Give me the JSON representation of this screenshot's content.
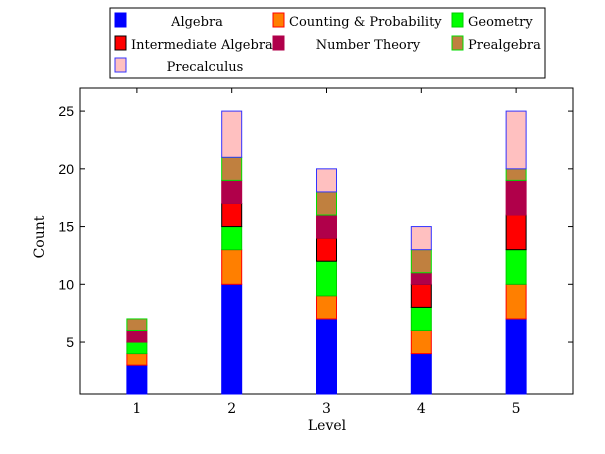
{
  "chart_data": {
    "type": "bar",
    "stacked": true,
    "categories": [
      "1",
      "2",
      "3",
      "4",
      "5"
    ],
    "xlabel": "Level",
    "ylabel": "Count",
    "ylim": [
      0.5,
      27
    ],
    "yticks": [
      5,
      10,
      15,
      20,
      25
    ],
    "grid": false,
    "legend_position": "top",
    "series": [
      {
        "name": "Algebra",
        "values": [
          3,
          10,
          7,
          4,
          7
        ],
        "fill": "#0000ff",
        "stroke": "#0000ff"
      },
      {
        "name": "Counting & Probability",
        "values": [
          1,
          3,
          2,
          2,
          3
        ],
        "fill": "#ff7f00",
        "stroke": "#ff0000"
      },
      {
        "name": "Geometry",
        "values": [
          1,
          2,
          3,
          2,
          3
        ],
        "fill": "#00ff00",
        "stroke": "#00cc00"
      },
      {
        "name": "Intermediate Algebra",
        "values": [
          0,
          2,
          2,
          2,
          3
        ],
        "fill": "#ff0000",
        "stroke": "#000000"
      },
      {
        "name": "Number Theory",
        "values": [
          1,
          2,
          2,
          1,
          3
        ],
        "fill": "#b0004a",
        "stroke": "#b0004a"
      },
      {
        "name": "Prealgebra",
        "values": [
          1,
          2,
          2,
          2,
          1
        ],
        "fill": "#c0803f",
        "stroke": "#00dd00"
      },
      {
        "name": "Precalculus",
        "values": [
          0,
          4,
          2,
          2,
          5
        ],
        "fill": "#ffc0c0",
        "stroke": "#3333ff"
      }
    ]
  }
}
